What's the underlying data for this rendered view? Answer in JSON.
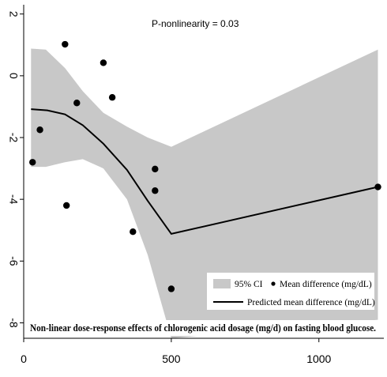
{
  "chart_data": {
    "type": "line",
    "title": "",
    "annotation": "P-nonlinearity  =  0.03",
    "caption": "Non-linear dose-response effects of chlorogenic acid dosage (mg/d) on fasting blood glucose.",
    "xlabel": "",
    "ylabel": "",
    "xlim": [
      0,
      1220
    ],
    "ylim": [
      -8.5,
      2.3
    ],
    "x_ticks": [
      {
        "value": 0,
        "label": "0"
      },
      {
        "value": 500,
        "label": "500"
      },
      {
        "value": 1000,
        "label": "1000"
      }
    ],
    "y_ticks": [
      {
        "value": 2,
        "label": "2"
      },
      {
        "value": 0,
        "label": "0"
      },
      {
        "value": -2,
        "label": "-2"
      },
      {
        "value": -4,
        "label": "-4"
      },
      {
        "value": -6,
        "label": "-6"
      },
      {
        "value": -8,
        "label": "-8"
      }
    ],
    "grid": false,
    "legend_position": "bottom-right",
    "ci_band": {
      "name": "95% CI",
      "color": "#c8c8c8",
      "x": [
        25,
        75,
        140,
        200,
        270,
        350,
        420,
        500,
        1200
      ],
      "upper": [
        0.88,
        0.85,
        0.25,
        -0.5,
        -1.2,
        -1.65,
        -2.0,
        -2.3,
        0.85
      ],
      "lower": [
        -2.95,
        -2.95,
        -2.8,
        -2.7,
        -3.0,
        -4.0,
        -5.8,
        -8.5,
        -7.9
      ]
    },
    "series": [
      {
        "name": "Predicted mean difference (mg/dL)",
        "type": "line",
        "color": "#000000",
        "x": [
          25,
          80,
          140,
          200,
          270,
          350,
          420,
          500,
          1200
        ],
        "y": [
          -1.08,
          -1.12,
          -1.25,
          -1.6,
          -2.2,
          -3.05,
          -4.05,
          -5.12,
          -3.6
        ]
      },
      {
        "name": "Mean difference (mg/dL)",
        "type": "scatter",
        "color": "#000000",
        "x": [
          30,
          55,
          140,
          145,
          180,
          270,
          300,
          370,
          445,
          445,
          500,
          1200
        ],
        "y": [
          -2.8,
          -1.75,
          1.02,
          -4.2,
          -0.88,
          0.42,
          -0.7,
          -5.05,
          -3.02,
          -3.72,
          -6.9,
          -3.6
        ]
      }
    ]
  }
}
